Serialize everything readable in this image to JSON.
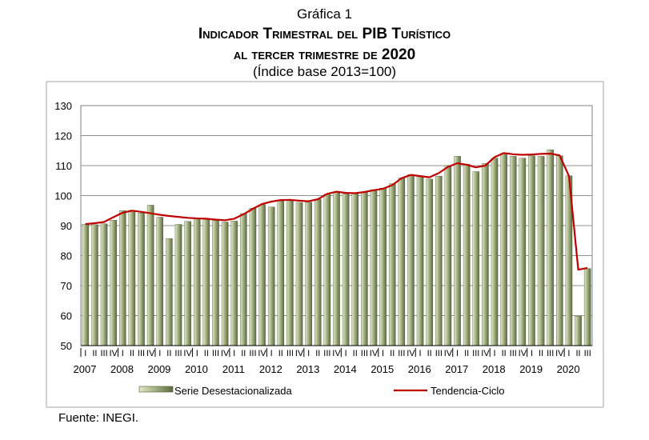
{
  "header": {
    "label": "Gráfica 1",
    "title_line1": "Indicador Trimestral del PIB Turístico",
    "title_line2": "al tercer trimestre de 2020",
    "subtitle": "(Índice base 2013=100)"
  },
  "source": "Fuente: INEGI.",
  "chart_data": {
    "type": "bar",
    "ylim": [
      50,
      130
    ],
    "yticks": [
      50,
      60,
      70,
      80,
      90,
      100,
      110,
      120,
      130
    ],
    "grid": true,
    "legend_position": "bottom",
    "quarter_labels": [
      "I",
      "II",
      "III",
      "IV"
    ],
    "years": [
      "2007",
      "2008",
      "2009",
      "2010",
      "2011",
      "2012",
      "2013",
      "2014",
      "2015",
      "2016",
      "2017",
      "2018",
      "2019",
      "2020"
    ],
    "series": [
      {
        "name": "Serie Desestacionalizada",
        "kind": "bar",
        "color": "#8f9e6a",
        "values": [
          90.5,
          90.3,
          90.6,
          91.8,
          95.0,
          95.1,
          94.2,
          96.8,
          92.8,
          85.7,
          90.4,
          91.4,
          92.5,
          92.2,
          91.7,
          91.2,
          91.5,
          94.0,
          95.8,
          97.0,
          96.2,
          98.2,
          98.3,
          97.7,
          97.8,
          98.8,
          100.5,
          101.3,
          100.6,
          100.8,
          101.0,
          102.0,
          102.5,
          104.0,
          105.9,
          107.0,
          106.3,
          105.5,
          106.5,
          110.0,
          113.1,
          110.5,
          108.0,
          110.7,
          112.5,
          114.0,
          113.1,
          112.5,
          113.3,
          113.1,
          115.3,
          113.3,
          106.6,
          59.8,
          75.7
        ]
      },
      {
        "name": "Tendencia-Ciclo",
        "kind": "line",
        "color": "#c00000",
        "values": [
          90.5,
          90.8,
          91.2,
          92.8,
          94.3,
          95.0,
          94.6,
          94.1,
          93.6,
          93.2,
          92.9,
          92.6,
          92.4,
          92.3,
          92.0,
          91.8,
          92.3,
          93.8,
          95.6,
          97.2,
          98.0,
          98.5,
          98.6,
          98.3,
          98.1,
          98.8,
          100.6,
          101.3,
          100.9,
          100.8,
          101.2,
          101.8,
          102.3,
          103.5,
          105.8,
          106.9,
          106.5,
          106.1,
          107.5,
          109.6,
          110.8,
          110.3,
          109.4,
          110.0,
          112.8,
          114.2,
          113.8,
          113.6,
          113.7,
          113.9,
          114.0,
          113.4,
          106.5,
          75.3,
          75.9
        ]
      }
    ]
  }
}
